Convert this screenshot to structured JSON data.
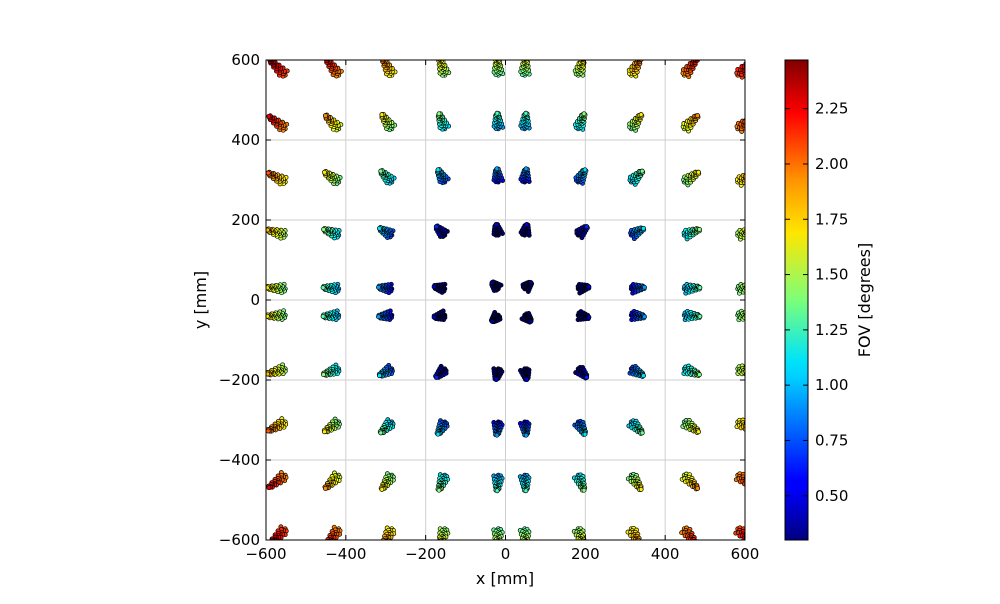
{
  "chart_data": {
    "type": "scatter",
    "title": "",
    "xlabel": "x [mm]",
    "ylabel": "y [mm]",
    "xlim": [
      -600,
      600
    ],
    "ylim": [
      -600,
      600
    ],
    "x_ticks": [
      -600,
      -400,
      -200,
      0,
      200,
      400,
      600
    ],
    "y_ticks": [
      -600,
      -400,
      -200,
      0,
      200,
      400,
      600
    ],
    "x_tick_labels": [
      "−600",
      "−400",
      "−200",
      "0",
      "200",
      "400",
      "600"
    ],
    "y_tick_labels": [
      "−600",
      "−400",
      "−200",
      "0",
      "200",
      "400",
      "600"
    ],
    "grid": true,
    "colorbar": {
      "label": "FOV [degrees]",
      "range": [
        0.3,
        2.47
      ],
      "ticks": [
        0.5,
        0.75,
        1.0,
        1.25,
        1.5,
        1.75,
        2.0,
        2.25
      ],
      "tick_labels": [
        "0.50",
        "0.75",
        "1.00",
        "1.25",
        "1.50",
        "1.75",
        "2.00",
        "2.25"
      ],
      "colormap": "jet"
    },
    "field_grid": {
      "positions": [
        -567,
        -433,
        -300,
        -167,
        -33,
        33,
        167,
        300,
        433,
        567
      ],
      "fov_max_by_row": [
        [
          2.45,
          2.3,
          2.05,
          1.8,
          1.7,
          1.7,
          1.8,
          2.05,
          2.3,
          2.45
        ],
        [
          2.3,
          1.95,
          1.75,
          1.45,
          1.3,
          1.3,
          1.45,
          1.75,
          1.95,
          2.3
        ],
        [
          2.05,
          1.75,
          1.4,
          1.1,
          0.95,
          0.95,
          1.1,
          1.4,
          1.75,
          2.05
        ],
        [
          1.85,
          1.45,
          1.1,
          0.7,
          0.55,
          0.55,
          0.7,
          1.1,
          1.45,
          1.85
        ],
        [
          1.75,
          1.35,
          0.95,
          0.5,
          0.4,
          0.4,
          0.5,
          0.95,
          1.35,
          1.75
        ],
        [
          1.75,
          1.35,
          0.95,
          0.5,
          0.4,
          0.4,
          0.5,
          0.95,
          1.35,
          1.75
        ],
        [
          1.85,
          1.45,
          1.1,
          0.7,
          0.55,
          0.55,
          0.7,
          1.1,
          1.45,
          1.85
        ],
        [
          2.05,
          1.75,
          1.4,
          1.1,
          0.95,
          0.95,
          1.1,
          1.4,
          1.75,
          2.05
        ],
        [
          2.3,
          1.95,
          1.75,
          1.45,
          1.3,
          1.3,
          1.45,
          1.75,
          1.95,
          2.3
        ],
        [
          2.45,
          2.3,
          2.05,
          1.8,
          1.7,
          1.7,
          1.8,
          2.05,
          2.3,
          2.45
        ]
      ]
    }
  }
}
